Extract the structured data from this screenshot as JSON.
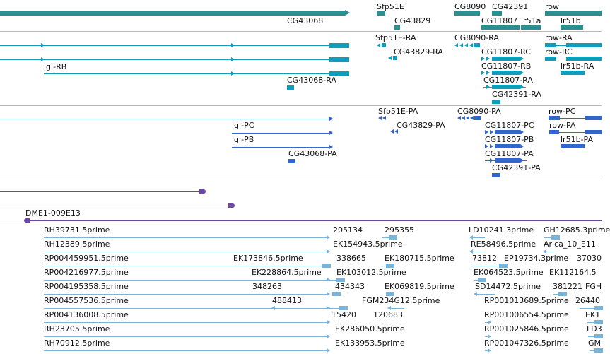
{
  "colors": {
    "gene": "#2a8f90",
    "transcript": "#0f9dbd",
    "protein": "#3366cc",
    "clone": "#6b46a8",
    "est": "#7bb3d9",
    "divider": "#b8b8b8"
  },
  "gene_track": {
    "labels": [
      "Sfp51E",
      "CG8090",
      "CG42391",
      "row",
      "CG43068",
      "CG43829",
      "CG11807",
      "lr51a",
      "lr51b"
    ]
  },
  "transcript_track": {
    "labels": [
      "Sfp51E-RA",
      "CG8090-RA",
      "row-RA",
      "igl-RB",
      "CG43829-RA",
      "CG11807-RC",
      "row-RC",
      "CG11807-RB",
      "lr51b-RA",
      "CG43068-RA",
      "CG11807-RA",
      "CG42391-RA"
    ]
  },
  "protein_track": {
    "labels": [
      "Sfp51E-PA",
      "CG8090-PA",
      "row-PC",
      "igl-PC",
      "CG43829-PA",
      "CG11807-PC",
      "row-PA",
      "igl-PB",
      "CG11807-PB",
      "lr51b-PA",
      "CG43068-PA",
      "CG11807-PA",
      "CG42391-PA"
    ]
  },
  "clone_track": {
    "labels": [
      "DME1-009E13"
    ]
  },
  "est_track": {
    "labels": [
      "RH39731.5prime",
      "205134",
      "295355",
      "LD10241.3prime",
      "GH12685.3prime",
      "RH12389.5prime",
      "EK154943.5prime",
      "RE58496.5prime",
      "Arica_10_E11",
      "RP004459951.5prime",
      "EK173846.5prime",
      "338665",
      "EK180715.5prime",
      "73812",
      "EP19734.3prime",
      "37030",
      "RP004216977.5prime",
      "EK228864.5prime",
      "EK103012.5prime",
      "EK064523.5prime",
      "EK112164.5",
      "RP004195358.5prime",
      "348263",
      "434343",
      "EK069819.5prime",
      "SD14472.5prime",
      "381221",
      "FGH",
      "RP004557536.5prime",
      "488413",
      "FGM234G12.5prime",
      "RP001013689.5prime",
      "26440",
      "RP004136008.5prime",
      "15420",
      "120683",
      "RP001006554.5prime",
      "EK1",
      "RH23705.5prime",
      "EK286050.5prime",
      "RP001025846.5prime",
      "LD3",
      "RH70912.5prime",
      "EK133953.5prime",
      "RP001047326.5prime",
      "GM"
    ]
  }
}
